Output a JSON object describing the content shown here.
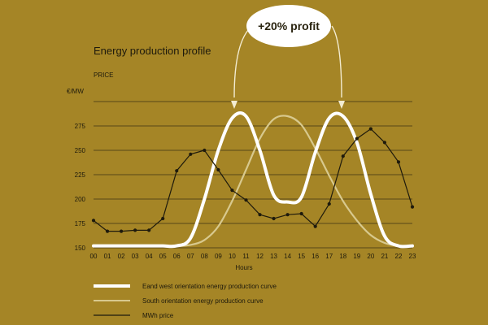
{
  "colors": {
    "background": "#a58526",
    "east_west_curve": "#ffffff",
    "south_curve": "#d8c98e",
    "price_line": "#1e1a0c",
    "gridline": "#2a2410",
    "callout_fill": "#ffffff",
    "callout_arrow": "#f3ecd2"
  },
  "callout": {
    "text": "+20% profit"
  },
  "chart_data": {
    "type": "line",
    "title": "Energy production profile",
    "subtitle": "PRICE",
    "ylabel": "€/MW",
    "xlabel": "Hours",
    "ylim": [
      150,
      300
    ],
    "yticks": [
      150,
      175,
      200,
      225,
      250,
      275
    ],
    "grid": true,
    "legend_position": "bottom-left",
    "x": [
      "00",
      "01",
      "02",
      "03",
      "04",
      "05",
      "06",
      "07",
      "08",
      "09",
      "10",
      "11",
      "12",
      "13",
      "14",
      "15",
      "16",
      "17",
      "18",
      "19",
      "20",
      "21",
      "22",
      "23"
    ],
    "series": [
      {
        "name": "Eand west orientation energy production curve",
        "style": "thick-white",
        "values": [
          152,
          152,
          152,
          152,
          152,
          152,
          152,
          160,
          200,
          250,
          283,
          285,
          250,
          204,
          197,
          202,
          248,
          283,
          285,
          258,
          205,
          162,
          152,
          152
        ]
      },
      {
        "name": "South orientation energy production curve",
        "style": "thin-cream",
        "values": [
          152,
          152,
          152,
          152,
          152,
          152,
          152,
          153,
          158,
          172,
          198,
          230,
          262,
          282,
          285,
          276,
          252,
          224,
          198,
          178,
          163,
          155,
          152,
          152
        ]
      },
      {
        "name": "MWh price",
        "style": "black-dots",
        "values": [
          178,
          167,
          167,
          168,
          168,
          180,
          229,
          246,
          250,
          230,
          209,
          199,
          184,
          180,
          184,
          185,
          172,
          195,
          244,
          262,
          272,
          258,
          238,
          192
        ]
      }
    ]
  }
}
